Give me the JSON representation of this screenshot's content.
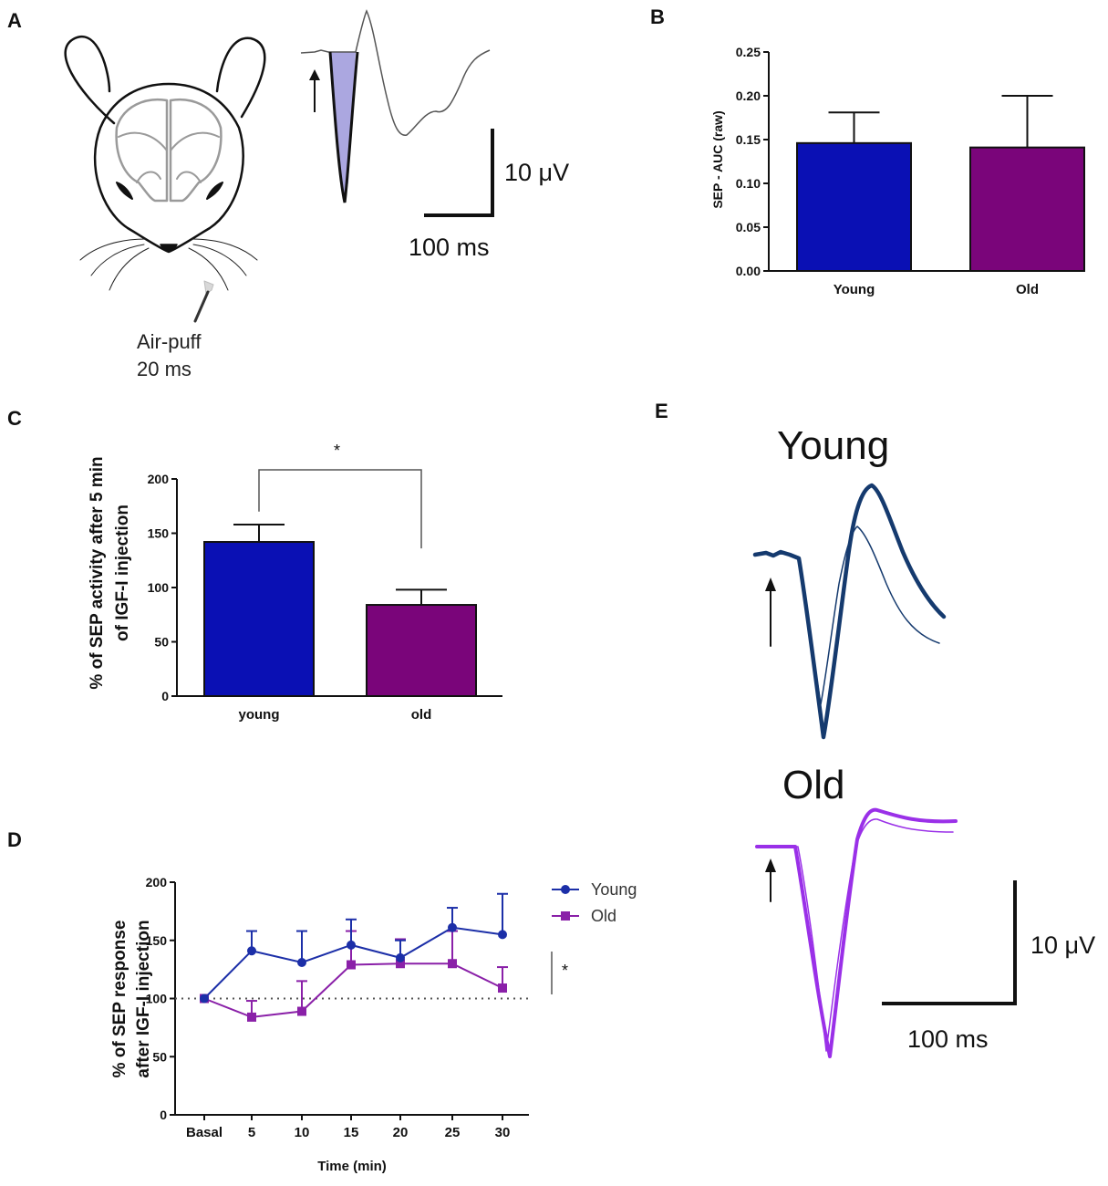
{
  "panels": {
    "a": "A",
    "b": "B",
    "c": "C",
    "d": "D",
    "e": "E"
  },
  "colors": {
    "young": "#0a10b4",
    "old": "#7a057a",
    "young_line": "#1c2fa8",
    "old_line": "#8a20a8",
    "trace_young": "#153a6e",
    "trace_old": "#9a30e8",
    "shade": "#8f8ad6"
  },
  "panel_a": {
    "stimulus_label": "Air-puff",
    "stimulus_duration": "20 ms",
    "scale_y_label": "10 μV",
    "scale_x_label": "100 ms"
  },
  "panel_e": {
    "young_label": "Young",
    "old_label": "Old",
    "scale_y_label": "10 μV",
    "scale_x_label": "100 ms"
  },
  "chart_data": [
    {
      "panel": "B",
      "type": "bar",
      "categories": [
        "Young",
        "Old"
      ],
      "values": [
        0.146,
        0.141
      ],
      "errors": [
        0.035,
        0.059
      ],
      "ylabel": "SEP - AUC (raw)",
      "xlabel": "",
      "ylim": [
        0,
        0.25
      ],
      "yticks": [
        "0.00",
        "0.05",
        "0.10",
        "0.15",
        "0.20",
        "0.25"
      ]
    },
    {
      "panel": "C",
      "type": "bar",
      "categories": [
        "young",
        "old"
      ],
      "values": [
        142,
        84
      ],
      "errors": [
        16,
        14
      ],
      "ylabel_line1": "% of SEP activity after 5 min",
      "ylabel_line2": "of IGF-I injection",
      "xlabel": "",
      "ylim": [
        0,
        200
      ],
      "yticks": [
        "0",
        "50",
        "100",
        "150",
        "200"
      ],
      "significance": "*"
    },
    {
      "panel": "D",
      "type": "line",
      "x": [
        "Basal",
        "5",
        "10",
        "15",
        "20",
        "25",
        "30"
      ],
      "series": [
        {
          "name": "Young",
          "values": [
            100,
            141,
            131,
            146,
            135,
            161,
            155
          ],
          "errors": [
            0,
            17,
            27,
            22,
            15,
            17,
            35
          ]
        },
        {
          "name": "Old",
          "values": [
            100,
            84,
            89,
            129,
            130,
            130,
            109
          ],
          "errors": [
            0,
            14,
            26,
            29,
            21,
            28,
            18
          ]
        }
      ],
      "xlabel": "Time (min)",
      "ylabel_line1": "% of SEP response",
      "ylabel_line2": "after IGF-I injection",
      "ylim": [
        0,
        200
      ],
      "yticks": [
        "0",
        "50",
        "100",
        "150",
        "200"
      ],
      "reference_line": 100,
      "significance": "*",
      "legend_position": "top-right"
    }
  ]
}
